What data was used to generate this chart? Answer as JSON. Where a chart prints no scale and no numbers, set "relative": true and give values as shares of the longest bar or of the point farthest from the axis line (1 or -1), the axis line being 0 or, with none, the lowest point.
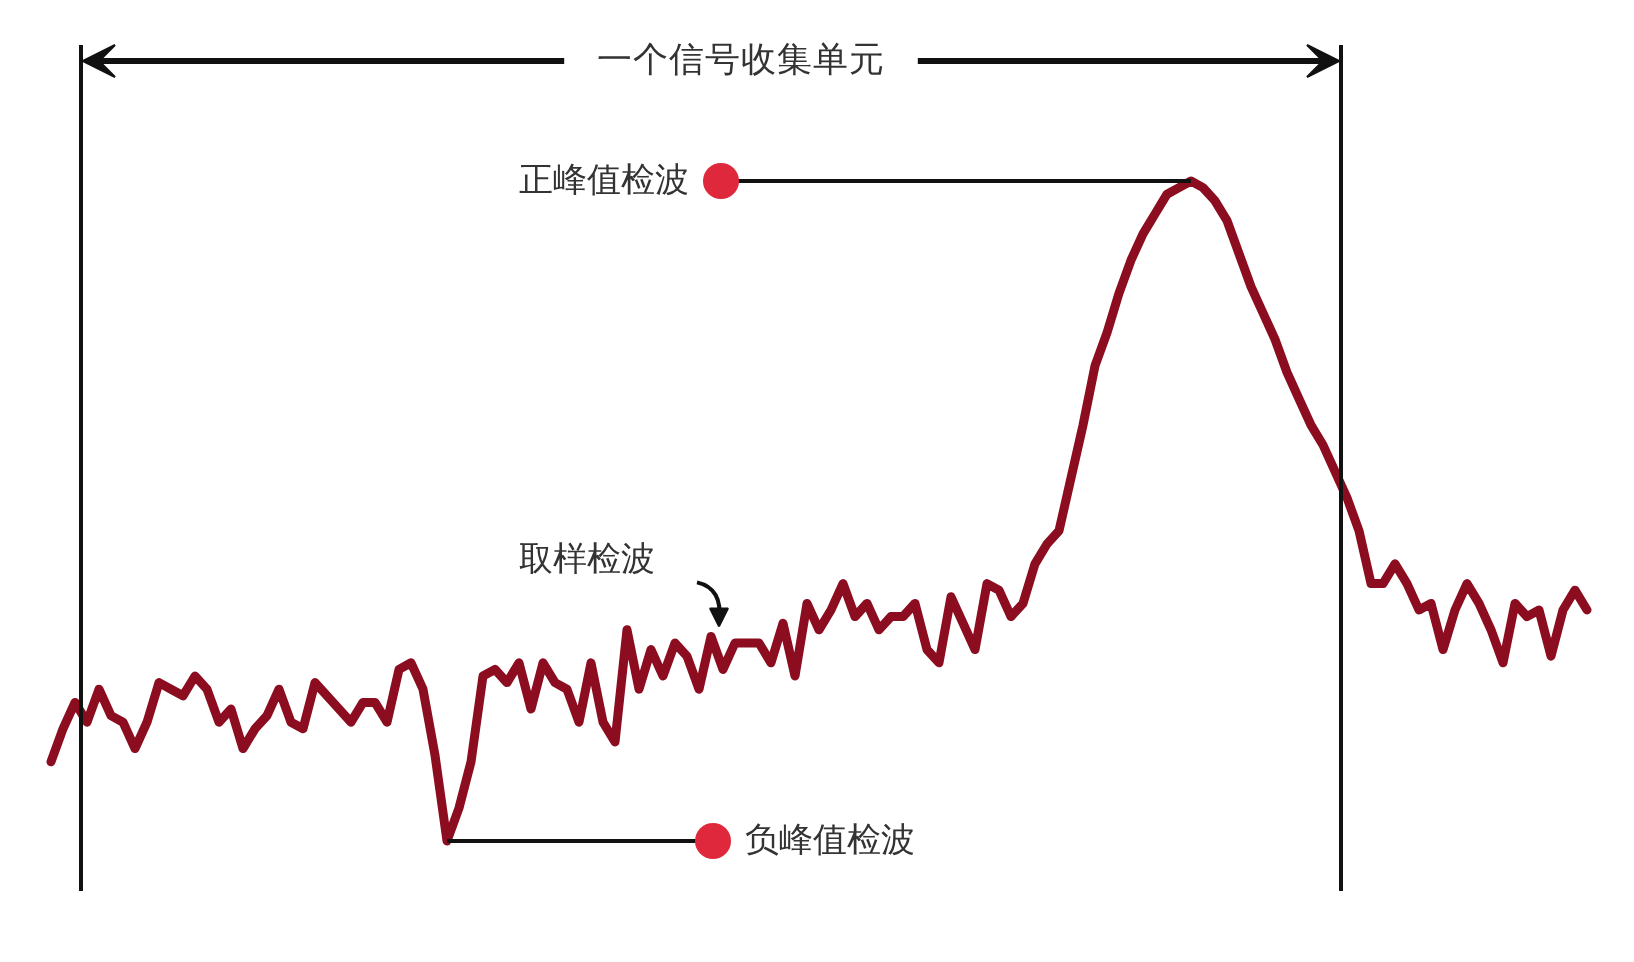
{
  "chart_data": {
    "type": "line",
    "relative": true,
    "categories": [
      null,
      null,
      null,
      null,
      null,
      null,
      null,
      null,
      null,
      null,
      null,
      null,
      null,
      null,
      null,
      null,
      null,
      null,
      null,
      null,
      null,
      null,
      null,
      null,
      null,
      null,
      null,
      null,
      null,
      null,
      null,
      null,
      null,
      null,
      null,
      null,
      null,
      null,
      null,
      null,
      null,
      null,
      null,
      null,
      null,
      null,
      null,
      null,
      null,
      null,
      null,
      null,
      null,
      null,
      null,
      null,
      null,
      null,
      null,
      null,
      null,
      null,
      null,
      null,
      null,
      null,
      null,
      null,
      null,
      null,
      null,
      null,
      null,
      null,
      null,
      null,
      null,
      null,
      null,
      null,
      null,
      null,
      null,
      null,
      null,
      null,
      null,
      null,
      null,
      null,
      null,
      null,
      null,
      null,
      null,
      null,
      null,
      null,
      null,
      null,
      null,
      null,
      null,
      null,
      null,
      null,
      null,
      null,
      null,
      null,
      null,
      null,
      null,
      null,
      null,
      null,
      null,
      null,
      null,
      null,
      null,
      null,
      null,
      null,
      null,
      null,
      null,
      null,
      null
    ],
    "series": [
      {
        "color": "#8b0d1f",
        "values": [
          0.12,
          0.17,
          0.21,
          0.18,
          0.23,
          0.19,
          0.18,
          0.14,
          0.18,
          0.24,
          0.23,
          0.22,
          0.25,
          0.23,
          0.18,
          0.2,
          0.14,
          0.17,
          0.19,
          0.23,
          0.18,
          0.17,
          0.24,
          0.22,
          0.2,
          0.18,
          0.21,
          0.21,
          0.18,
          0.26,
          0.27,
          0.23,
          0.13,
          0,
          0.05,
          0.12,
          0.25,
          0.26,
          0.24,
          0.27,
          0.2,
          0.27,
          0.24,
          0.23,
          0.18,
          0.27,
          0.18,
          0.15,
          0.32,
          0.23,
          0.29,
          0.25,
          0.3,
          0.28,
          0.23,
          0.31,
          0.26,
          0.3,
          0.3,
          0.3,
          0.27,
          0.33,
          0.25,
          0.36,
          0.32,
          0.35,
          0.39,
          0.34,
          0.36,
          0.32,
          0.34,
          0.34,
          0.36,
          0.29,
          0.27,
          0.37,
          0.33,
          0.29,
          0.39,
          0.38,
          0.34,
          0.36,
          0.42,
          0.45,
          0.47,
          0.55,
          0.63,
          0.72,
          0.77,
          0.83,
          0.88,
          0.92,
          0.95,
          0.98,
          0.99,
          1,
          0.99,
          0.97,
          0.94,
          0.89,
          0.84,
          0.8,
          0.76,
          0.71,
          0.67,
          0.63,
          0.6,
          0.56,
          0.52,
          0.47,
          0.39,
          0.39,
          0.42,
          0.39,
          0.35,
          0.36,
          0.29,
          0.35,
          0.39,
          0.36,
          0.32,
          0.27,
          0.36,
          0.34,
          0.35,
          0.28,
          0.35,
          0.38,
          0.35
        ]
      }
    ],
    "annotations": [
      "一个信号收集单元",
      "正峰值检波",
      "取样检波",
      "负峰值检波"
    ]
  }
}
